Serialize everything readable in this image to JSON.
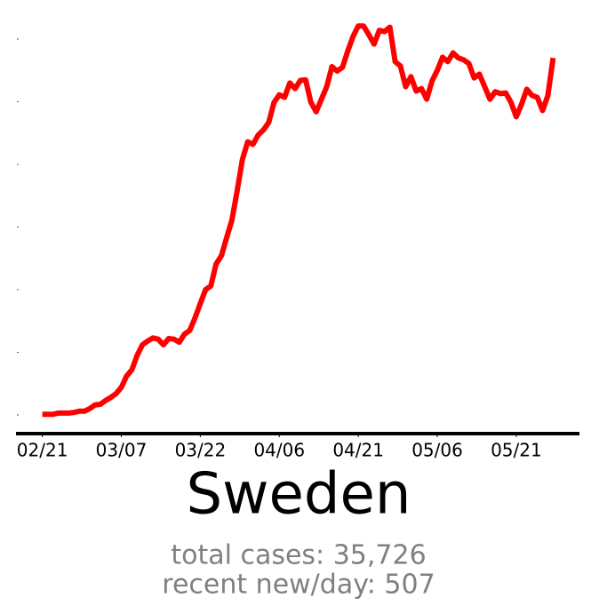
{
  "chart_data": {
    "type": "line",
    "title": "Sweden",
    "subtitle": [
      "total cases: 35,726",
      "recent new/day: 507"
    ],
    "x": [
      0,
      1,
      2,
      3,
      4,
      5,
      6,
      7,
      8,
      9,
      10,
      11,
      12,
      13,
      14,
      15,
      16,
      17,
      18,
      19,
      20,
      21,
      22,
      23,
      24,
      25,
      26,
      27,
      28,
      29,
      30,
      31,
      32,
      33,
      34,
      35,
      36,
      37,
      38,
      39,
      40,
      41,
      42,
      43,
      44,
      45,
      46,
      47,
      48,
      49,
      50,
      51,
      52,
      53,
      54,
      55,
      56,
      57,
      58,
      59,
      60,
      61,
      62,
      63,
      64,
      65,
      66,
      67,
      68,
      69,
      70,
      71,
      72,
      73,
      74,
      75,
      76,
      77,
      78,
      79,
      80,
      81,
      82,
      83,
      84,
      85,
      86,
      87,
      88,
      89,
      90,
      91,
      92,
      93,
      94,
      95,
      96,
      97
    ],
    "series": [
      {
        "name": "Sweden",
        "color": "#ff0000",
        "values": [
          1,
          1,
          1,
          3,
          3,
          3,
          4,
          6,
          6,
          10,
          16,
          17,
          23,
          28,
          34,
          44,
          62,
          72,
          95,
          112,
          118,
          123,
          121,
          112,
          122,
          121,
          116,
          129,
          135,
          155,
          178,
          200,
          206,
          241,
          254,
          283,
          311,
          358,
          408,
          436,
          432,
          447,
          455,
          467,
          499,
          511,
          507,
          530,
          521,
          534,
          535,
          499,
          484,
          504,
          524,
          556,
          549,
          555,
          581,
          604,
          621,
          621,
          607,
          592,
          614,
          612,
          619,
          564,
          557,
          524,
          540,
          517,
          521,
          504,
          533,
          550,
          571,
          564,
          578,
          570,
          567,
          561,
          538,
          544,
          524,
          504,
          516,
          513,
          514,
          499,
          476,
          496,
          520,
          510,
          507,
          486,
          510,
          570
        ]
      }
    ],
    "xlim": [
      -5,
      102
    ],
    "xticks": [
      {
        "value": 0,
        "label": "02/21"
      },
      {
        "value": 15,
        "label": "03/07"
      },
      {
        "value": 30,
        "label": "03/22"
      },
      {
        "value": 45,
        "label": "04/06"
      },
      {
        "value": 60,
        "label": "04/21"
      },
      {
        "value": 75,
        "label": "05/06"
      },
      {
        "value": 90,
        "label": "05/21"
      }
    ],
    "ylim": [
      0,
      600
    ],
    "yticks": [
      0,
      100,
      200,
      300,
      400,
      500,
      600
    ]
  }
}
